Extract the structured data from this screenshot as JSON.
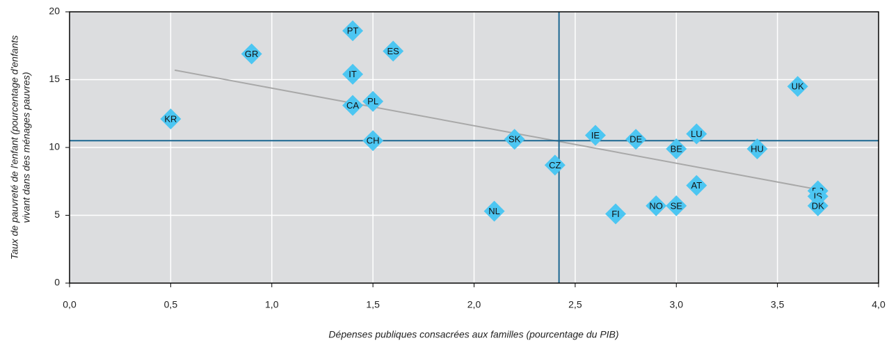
{
  "chart_data": {
    "type": "scatter",
    "xlabel": "Dépenses publiques consacrées aux familles (pourcentage du PIB)",
    "ylabel": [
      "Taux de pauvreté de l'enfant (pourcentage d'enfants",
      "vivant dans des ménages pauvres)"
    ],
    "labels": [
      "KR",
      "GR",
      "PT",
      "ES",
      "IT",
      "PL",
      "CA",
      "CH",
      "SK",
      "CZ",
      "NL",
      "IE",
      "DE",
      "BE",
      "LU",
      "HU",
      "UK",
      "FI",
      "NO",
      "SE",
      "AT",
      "FR",
      "IS",
      "DK"
    ],
    "x": [
      0.5,
      0.9,
      1.4,
      1.6,
      1.4,
      1.5,
      1.4,
      1.5,
      2.2,
      2.4,
      2.1,
      2.6,
      2.8,
      3.0,
      3.1,
      3.4,
      3.6,
      2.7,
      2.9,
      3.0,
      3.1,
      3.7,
      3.7,
      3.7
    ],
    "values": [
      12.1,
      16.9,
      18.6,
      17.1,
      15.4,
      13.4,
      13.1,
      10.5,
      10.6,
      8.7,
      5.3,
      10.9,
      10.6,
      9.9,
      11.0,
      9.9,
      14.5,
      5.1,
      5.7,
      5.7,
      7.2,
      6.8,
      6.4,
      5.7
    ],
    "color": "#4cc6f2",
    "mean_x": 2.42,
    "mean_y": 10.5,
    "mean_color": "#1b6791",
    "trend_line": {
      "x": [
        0.52,
        3.7
      ],
      "y": [
        15.7,
        6.9
      ],
      "color": "#a8a8a8"
    },
    "xlim": [
      0,
      4
    ],
    "ylim": [
      0,
      20
    ],
    "xticks": [
      {
        "value": 0,
        "label": "0,0"
      },
      {
        "value": 0.5,
        "label": "0,5"
      },
      {
        "value": 1,
        "label": "1,0"
      },
      {
        "value": 1.5,
        "label": "1,5"
      },
      {
        "value": 2,
        "label": "2,0"
      },
      {
        "value": 2.5,
        "label": "2,5"
      },
      {
        "value": 3,
        "label": "3,0"
      },
      {
        "value": 3.5,
        "label": "3,5"
      },
      {
        "value": 4,
        "label": "4,0"
      }
    ],
    "yticks": [
      0,
      5,
      10,
      15,
      20
    ],
    "grid": true
  }
}
